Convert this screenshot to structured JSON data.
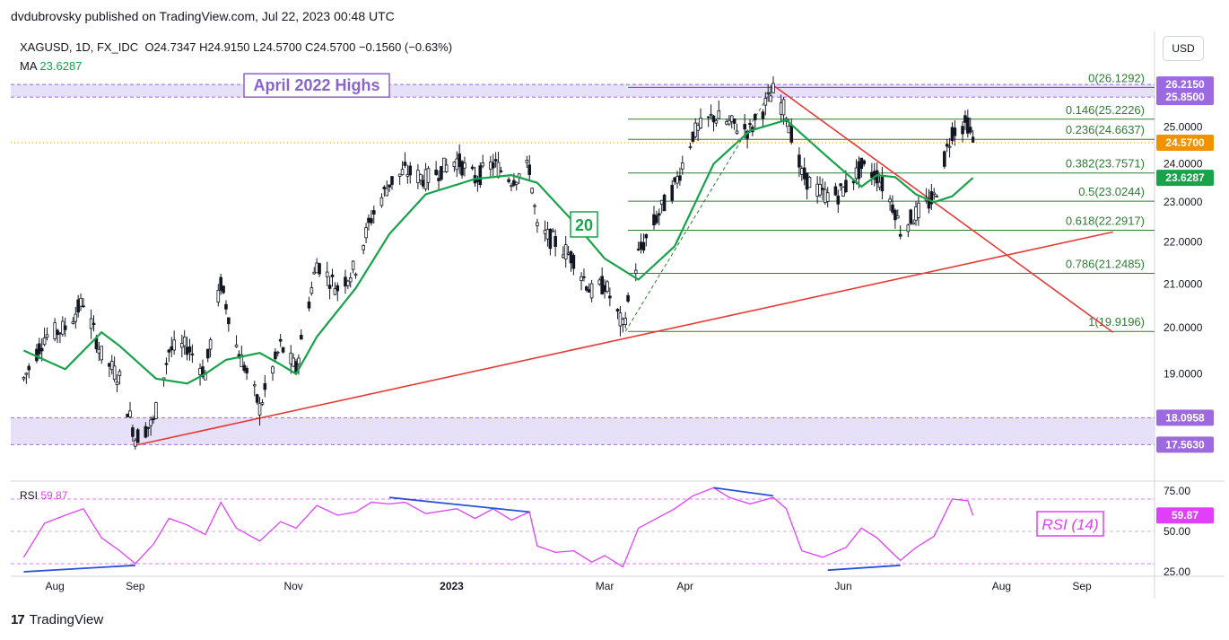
{
  "header": {
    "published": "dvdubrovsky published on TradingView.com, Jul 22, 2023 00:48 UTC",
    "symbol": "XAGUSD, 1D, FX_IDC",
    "ohlc": "O24.7347  H24.9150  L24.5700  C24.5700  −0.1560 (−0.63%)",
    "ma_label": "MA",
    "ma_value": "23.6287",
    "rsi_label": "RSI",
    "rsi_value": "59.87",
    "currency": "USD"
  },
  "footer": {
    "brand": "TradingView",
    "logo_text": "17"
  },
  "colors": {
    "green": "#16a34a",
    "red": "#e53935",
    "magenta": "#e040fb",
    "blue": "#2a50d6",
    "zone": "#e2dcf7",
    "candle": "#131722",
    "price_badge": "#f29200"
  },
  "chart_data": {
    "type": "candlestick",
    "y_scale": "log",
    "ylim": [
      17.0,
      26.8
    ],
    "y_ticks": [
      "26.2150",
      "25.8500",
      "25.0000",
      "24.0000",
      "23.6287",
      "23.0000",
      "22.0000",
      "21.0000",
      "20.0000",
      "19.0000",
      "18.0958",
      "17.5630"
    ],
    "x_ticks": [
      "Aug",
      "Sep",
      "Nov",
      "2023",
      "Mar",
      "Apr",
      "Jun",
      "Aug",
      "Sep"
    ],
    "last_price": "24.5700",
    "ma_last": "23.6287",
    "annotations": {
      "zone_high": "April 2022 Highs",
      "ma_period": "20",
      "rsi_title": "RSI (14)"
    },
    "zones": [
      {
        "low": 25.85,
        "high": 26.215,
        "low_label": "25.8500",
        "high_label": "26.2150"
      },
      {
        "low": 17.563,
        "high": 18.0958,
        "low_label": "17.5630",
        "high_label": "18.0958"
      }
    ],
    "fib_levels": [
      {
        "value": 26.1292,
        "label": "0(26.1292)"
      },
      {
        "value": 25.2226,
        "label": "0.146(25.2226)"
      },
      {
        "value": 24.6637,
        "label": "0.236(24.6637)"
      },
      {
        "value": 23.7571,
        "label": "0.382(23.7571)"
      },
      {
        "value": 23.0244,
        "label": "0.5(23.0244)"
      },
      {
        "value": 22.2917,
        "label": "0.618(22.2917)"
      },
      {
        "value": 21.2485,
        "label": "0.786(21.2485)"
      },
      {
        "value": 19.9196,
        "label": "1(19.9196)"
      }
    ],
    "price_path": [
      {
        "date": "2022-07-20",
        "value": 18.9
      },
      {
        "date": "2022-07-28",
        "value": 19.8
      },
      {
        "date": "2022-08-05",
        "value": 20.0
      },
      {
        "date": "2022-08-12",
        "value": 20.6
      },
      {
        "date": "2022-08-19",
        "value": 19.4
      },
      {
        "date": "2022-08-26",
        "value": 18.9
      },
      {
        "date": "2022-09-01",
        "value": 17.7
      },
      {
        "date": "2022-09-08",
        "value": 18.0
      },
      {
        "date": "2022-09-14",
        "value": 19.5
      },
      {
        "date": "2022-09-21",
        "value": 19.6
      },
      {
        "date": "2022-09-28",
        "value": 19.0
      },
      {
        "date": "2022-10-04",
        "value": 21.0
      },
      {
        "date": "2022-10-10",
        "value": 19.6
      },
      {
        "date": "2022-10-19",
        "value": 18.3
      },
      {
        "date": "2022-10-27",
        "value": 19.6
      },
      {
        "date": "2022-11-02",
        "value": 19.1
      },
      {
        "date": "2022-11-10",
        "value": 21.5
      },
      {
        "date": "2022-11-18",
        "value": 20.9
      },
      {
        "date": "2022-11-25",
        "value": 21.4
      },
      {
        "date": "2022-12-01",
        "value": 22.6
      },
      {
        "date": "2022-12-08",
        "value": 23.5
      },
      {
        "date": "2022-12-14",
        "value": 23.8
      },
      {
        "date": "2022-12-22",
        "value": 23.6
      },
      {
        "date": "2023-01-03",
        "value": 24.1
      },
      {
        "date": "2023-01-10",
        "value": 23.6
      },
      {
        "date": "2023-01-17",
        "value": 24.0
      },
      {
        "date": "2023-01-24",
        "value": 23.6
      },
      {
        "date": "2023-01-31",
        "value": 23.9
      },
      {
        "date": "2023-02-03",
        "value": 22.3
      },
      {
        "date": "2023-02-10",
        "value": 22.0
      },
      {
        "date": "2023-02-17",
        "value": 21.6
      },
      {
        "date": "2023-02-24",
        "value": 20.8
      },
      {
        "date": "2023-03-01",
        "value": 21.0
      },
      {
        "date": "2023-03-08",
        "value": 20.0
      },
      {
        "date": "2023-03-14",
        "value": 21.7
      },
      {
        "date": "2023-03-21",
        "value": 22.6
      },
      {
        "date": "2023-03-28",
        "value": 23.4
      },
      {
        "date": "2023-04-04",
        "value": 24.8
      },
      {
        "date": "2023-04-12",
        "value": 25.3
      },
      {
        "date": "2023-04-18",
        "value": 25.1
      },
      {
        "date": "2023-04-26",
        "value": 24.9
      },
      {
        "date": "2023-05-05",
        "value": 26.0
      },
      {
        "date": "2023-05-10",
        "value": 25.4
      },
      {
        "date": "2023-05-16",
        "value": 23.7
      },
      {
        "date": "2023-05-24",
        "value": 23.2
      },
      {
        "date": "2023-05-30",
        "value": 23.2
      },
      {
        "date": "2023-06-02",
        "value": 23.4
      },
      {
        "date": "2023-06-08",
        "value": 23.9
      },
      {
        "date": "2023-06-14",
        "value": 23.7
      },
      {
        "date": "2023-06-21",
        "value": 22.8
      },
      {
        "date": "2023-06-23",
        "value": 22.3
      },
      {
        "date": "2023-06-29",
        "value": 22.7
      },
      {
        "date": "2023-07-06",
        "value": 23.1
      },
      {
        "date": "2023-07-13",
        "value": 24.9
      },
      {
        "date": "2023-07-19",
        "value": 25.1
      },
      {
        "date": "2023-07-21",
        "value": 24.57
      }
    ],
    "ma_path": [
      {
        "date": "2022-07-20",
        "value": 19.5
      },
      {
        "date": "2022-08-05",
        "value": 19.1
      },
      {
        "date": "2022-08-19",
        "value": 19.9
      },
      {
        "date": "2022-08-26",
        "value": 19.6
      },
      {
        "date": "2022-09-09",
        "value": 18.9
      },
      {
        "date": "2022-09-21",
        "value": 18.8
      },
      {
        "date": "2022-09-28",
        "value": 19.0
      },
      {
        "date": "2022-10-06",
        "value": 19.3
      },
      {
        "date": "2022-10-19",
        "value": 19.45
      },
      {
        "date": "2022-10-27",
        "value": 19.2
      },
      {
        "date": "2022-11-02",
        "value": 19.0
      },
      {
        "date": "2022-11-10",
        "value": 19.8
      },
      {
        "date": "2022-11-25",
        "value": 20.9
      },
      {
        "date": "2022-12-08",
        "value": 22.2
      },
      {
        "date": "2022-12-22",
        "value": 23.2
      },
      {
        "date": "2023-01-10",
        "value": 23.6
      },
      {
        "date": "2023-01-24",
        "value": 23.7
      },
      {
        "date": "2023-02-03",
        "value": 23.5
      },
      {
        "date": "2023-02-17",
        "value": 22.5
      },
      {
        "date": "2023-03-01",
        "value": 21.6
      },
      {
        "date": "2023-03-14",
        "value": 21.1
      },
      {
        "date": "2023-03-28",
        "value": 21.9
      },
      {
        "date": "2023-04-12",
        "value": 24.0
      },
      {
        "date": "2023-04-26",
        "value": 24.9
      },
      {
        "date": "2023-05-10",
        "value": 25.2
      },
      {
        "date": "2023-05-24",
        "value": 24.3
      },
      {
        "date": "2023-06-08",
        "value": 23.4
      },
      {
        "date": "2023-06-14",
        "value": 23.7
      },
      {
        "date": "2023-06-21",
        "value": 23.65
      },
      {
        "date": "2023-06-29",
        "value": 23.2
      },
      {
        "date": "2023-07-06",
        "value": 23.0
      },
      {
        "date": "2023-07-13",
        "value": 23.15
      },
      {
        "date": "2023-07-21",
        "value": 23.63
      }
    ],
    "trendlines": [
      {
        "name": "support",
        "from": {
          "date": "2022-09-01",
          "value": 17.55
        },
        "to": {
          "date": "2023-09-13",
          "value": 22.25
        }
      },
      {
        "name": "resistance",
        "from": {
          "date": "2023-05-05",
          "value": 26.19
        },
        "to": {
          "date": "2023-09-13",
          "value": 19.9
        }
      }
    ],
    "rsi": {
      "levels": [
        70,
        50,
        30
      ],
      "ticks": [
        "75.00",
        "50.00",
        "25.00"
      ],
      "ylim": [
        25,
        80
      ],
      "last": "59.87",
      "path": [
        {
          "date": "2022-07-20",
          "value": 34
        },
        {
          "date": "2022-07-28",
          "value": 55
        },
        {
          "date": "2022-08-05",
          "value": 60
        },
        {
          "date": "2022-08-12",
          "value": 64
        },
        {
          "date": "2022-08-19",
          "value": 46
        },
        {
          "date": "2022-08-26",
          "value": 38
        },
        {
          "date": "2022-09-01",
          "value": 30
        },
        {
          "date": "2022-09-08",
          "value": 42
        },
        {
          "date": "2022-09-14",
          "value": 58
        },
        {
          "date": "2022-09-21",
          "value": 54
        },
        {
          "date": "2022-09-28",
          "value": 48
        },
        {
          "date": "2022-10-04",
          "value": 68
        },
        {
          "date": "2022-10-10",
          "value": 52
        },
        {
          "date": "2022-10-19",
          "value": 44
        },
        {
          "date": "2022-10-27",
          "value": 56
        },
        {
          "date": "2022-11-02",
          "value": 52
        },
        {
          "date": "2022-11-10",
          "value": 66
        },
        {
          "date": "2022-11-18",
          "value": 60
        },
        {
          "date": "2022-11-25",
          "value": 62
        },
        {
          "date": "2022-12-01",
          "value": 68
        },
        {
          "date": "2022-12-08",
          "value": 67
        },
        {
          "date": "2022-12-14",
          "value": 68
        },
        {
          "date": "2022-12-22",
          "value": 61
        },
        {
          "date": "2023-01-03",
          "value": 64
        },
        {
          "date": "2023-01-10",
          "value": 58
        },
        {
          "date": "2023-01-17",
          "value": 64
        },
        {
          "date": "2023-01-24",
          "value": 57
        },
        {
          "date": "2023-01-31",
          "value": 62
        },
        {
          "date": "2023-02-03",
          "value": 41
        },
        {
          "date": "2023-02-10",
          "value": 37
        },
        {
          "date": "2023-02-17",
          "value": 38
        },
        {
          "date": "2023-02-24",
          "value": 31
        },
        {
          "date": "2023-03-01",
          "value": 35
        },
        {
          "date": "2023-03-08",
          "value": 28
        },
        {
          "date": "2023-03-14",
          "value": 52
        },
        {
          "date": "2023-03-21",
          "value": 58
        },
        {
          "date": "2023-03-28",
          "value": 64
        },
        {
          "date": "2023-04-04",
          "value": 72
        },
        {
          "date": "2023-04-12",
          "value": 77
        },
        {
          "date": "2023-04-18",
          "value": 71
        },
        {
          "date": "2023-04-26",
          "value": 67
        },
        {
          "date": "2023-05-05",
          "value": 71
        },
        {
          "date": "2023-05-10",
          "value": 64
        },
        {
          "date": "2023-05-16",
          "value": 38
        },
        {
          "date": "2023-05-24",
          "value": 34
        },
        {
          "date": "2023-05-30",
          "value": 38
        },
        {
          "date": "2023-06-02",
          "value": 40
        },
        {
          "date": "2023-06-08",
          "value": 52
        },
        {
          "date": "2023-06-14",
          "value": 46
        },
        {
          "date": "2023-06-21",
          "value": 35
        },
        {
          "date": "2023-06-23",
          "value": 32
        },
        {
          "date": "2023-06-29",
          "value": 40
        },
        {
          "date": "2023-07-06",
          "value": 47
        },
        {
          "date": "2023-07-13",
          "value": 70
        },
        {
          "date": "2023-07-19",
          "value": 69
        },
        {
          "date": "2023-07-21",
          "value": 60
        }
      ],
      "divergences": [
        {
          "from": {
            "date": "2022-07-20",
            "value": 25
          },
          "to": {
            "date": "2022-09-01",
            "value": 29
          }
        },
        {
          "from": {
            "date": "2022-12-08",
            "value": 71
          },
          "to": {
            "date": "2023-01-31",
            "value": 62
          }
        },
        {
          "from": {
            "date": "2023-04-12",
            "value": 77
          },
          "to": {
            "date": "2023-05-05",
            "value": 72
          }
        },
        {
          "from": {
            "date": "2023-05-26",
            "value": 26
          },
          "to": {
            "date": "2023-06-23",
            "value": 29
          }
        }
      ]
    }
  }
}
